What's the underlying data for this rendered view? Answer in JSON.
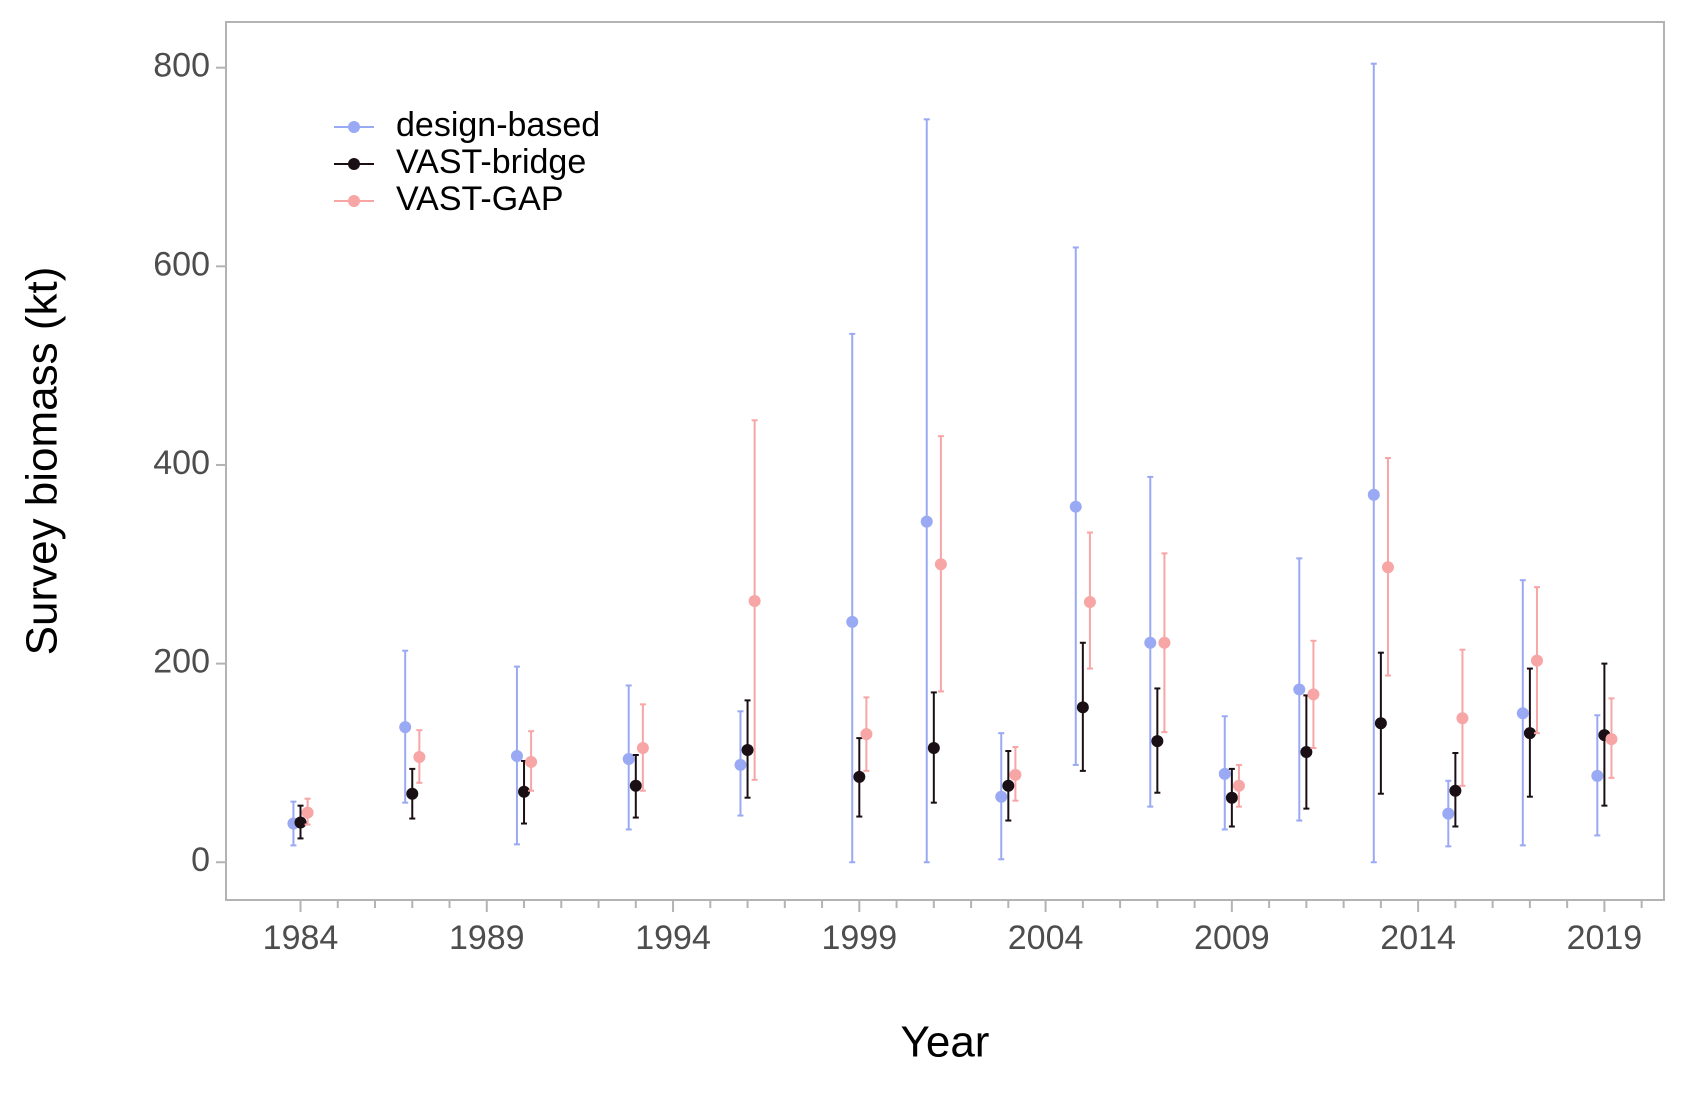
{
  "chart_data": {
    "type": "errorbar",
    "xlabel": "Year",
    "ylabel": "Survey biomass (kt)",
    "x": [
      1984,
      1987,
      1990,
      1993,
      1996,
      1999,
      2001,
      2003,
      2005,
      2007,
      2009,
      2011,
      2013,
      2015,
      2017,
      2019
    ],
    "series": [
      {
        "name": "design-based",
        "color": "#9aa9f4",
        "values": [
          39,
          136,
          107,
          104,
          98,
          242,
          343,
          66,
          358,
          221,
          89,
          174,
          370,
          49,
          150,
          87
        ],
        "lower": [
          17,
          60,
          18,
          33,
          47,
          0,
          0,
          3,
          98,
          56,
          33,
          42,
          0,
          16,
          17,
          27
        ],
        "upper": [
          61,
          213,
          197,
          178,
          152,
          532,
          748,
          130,
          619,
          388,
          147,
          306,
          804,
          82,
          284,
          148
        ]
      },
      {
        "name": "VAST-bridge",
        "color": "#1a0f14",
        "values": [
          40,
          69,
          71,
          77,
          113,
          86,
          115,
          77,
          156,
          122,
          65,
          111,
          140,
          72,
          130,
          128
        ],
        "lower": [
          24,
          44,
          39,
          45,
          65,
          46,
          60,
          42,
          92,
          70,
          36,
          54,
          69,
          36,
          66,
          57
        ],
        "upper": [
          57,
          94,
          102,
          108,
          163,
          125,
          171,
          112,
          221,
          175,
          94,
          168,
          211,
          110,
          195,
          200
        ]
      },
      {
        "name": "VAST-GAP",
        "color": "#f7a5a5",
        "values": [
          50,
          106,
          101,
          115,
          263,
          129,
          300,
          88,
          262,
          221,
          77,
          169,
          297,
          145,
          203,
          124
        ],
        "lower": [
          38,
          80,
          72,
          72,
          83,
          92,
          172,
          62,
          195,
          131,
          56,
          115,
          188,
          77,
          130,
          85
        ],
        "upper": [
          64,
          133,
          132,
          159,
          445,
          166,
          429,
          116,
          332,
          311,
          98,
          223,
          407,
          214,
          277,
          165
        ]
      }
    ],
    "xlim": [
      1982,
      2020.6
    ],
    "xticks": [
      1984,
      1989,
      1994,
      1999,
      2004,
      2009,
      2014,
      2019
    ],
    "xminorticks": [
      1985,
      1986,
      1987,
      1988,
      1990,
      1991,
      1992,
      1993,
      1995,
      1996,
      1997,
      1998,
      2000,
      2001,
      2002,
      2003,
      2005,
      2006,
      2007,
      2008,
      2010,
      2011,
      2012,
      2013,
      2015,
      2016,
      2017,
      2018,
      2020
    ],
    "ylim": [
      -38,
      846
    ],
    "yticks": [
      0,
      200,
      400,
      600,
      800
    ],
    "legend": "top-left",
    "grid": false
  }
}
